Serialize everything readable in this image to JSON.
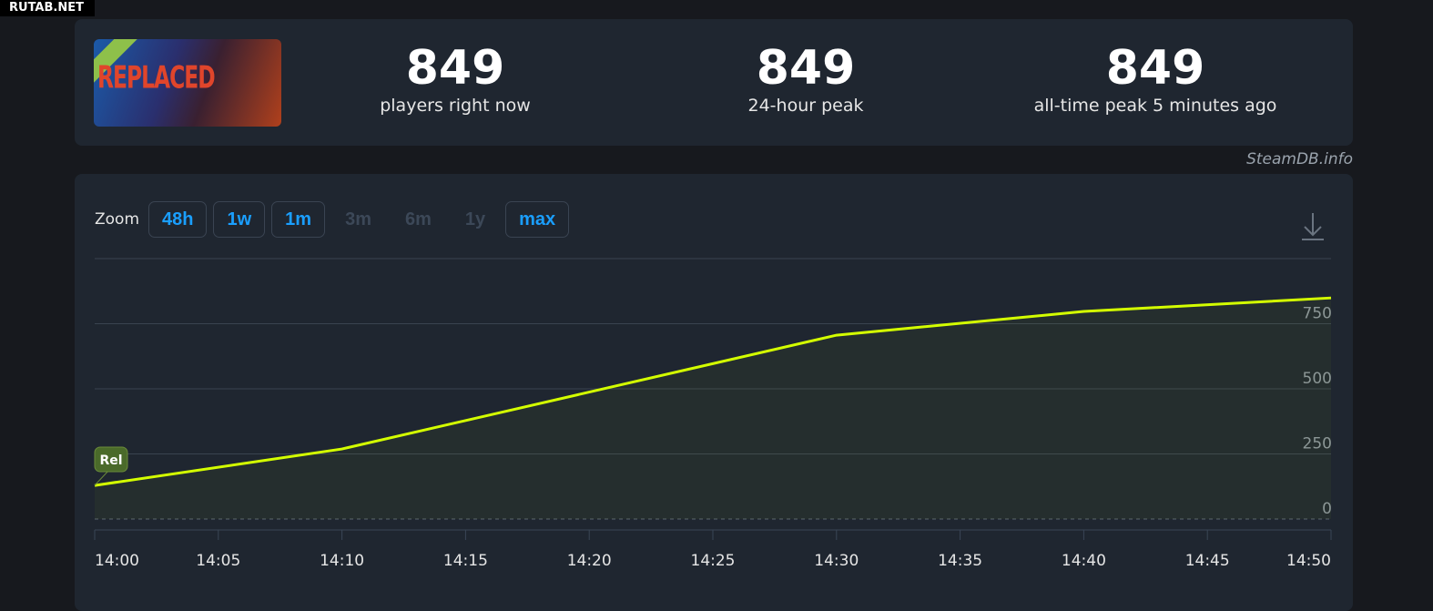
{
  "watermark": "RUTAB.NET",
  "game": {
    "logo_text": "REPLACED"
  },
  "stats": [
    {
      "value": "849",
      "label": "players right now"
    },
    {
      "value": "849",
      "label": "24-hour peak"
    },
    {
      "value": "849",
      "label": "all-time peak 5 minutes ago"
    }
  ],
  "credit": "SteamDB.info",
  "zoom": {
    "label": "Zoom",
    "buttons": [
      {
        "label": "48h",
        "enabled": true
      },
      {
        "label": "1w",
        "enabled": true
      },
      {
        "label": "1m",
        "enabled": true
      },
      {
        "label": "3m",
        "enabled": false
      },
      {
        "label": "6m",
        "enabled": false
      },
      {
        "label": "1y",
        "enabled": false
      },
      {
        "label": "max",
        "enabled": true
      }
    ]
  },
  "download_icon": "download-icon",
  "colors": {
    "line": "#d4ff00",
    "accent": "#1a9fff",
    "marker": "#4a6a2a"
  },
  "chart_data": {
    "type": "line",
    "x": [
      "14:00",
      "14:10",
      "14:30",
      "14:40",
      "14:50"
    ],
    "y": [
      129,
      269,
      706,
      797,
      849
    ],
    "xticks": [
      "14:00",
      "14:05",
      "14:10",
      "14:15",
      "14:20",
      "14:25",
      "14:30",
      "14:35",
      "14:40",
      "14:45",
      "14:50"
    ],
    "yticks": [
      "0",
      "250",
      "500",
      "750"
    ],
    "ylim": [
      0,
      1000
    ],
    "grid": true,
    "annotation": {
      "label": "Rel",
      "x": "14:00"
    }
  }
}
